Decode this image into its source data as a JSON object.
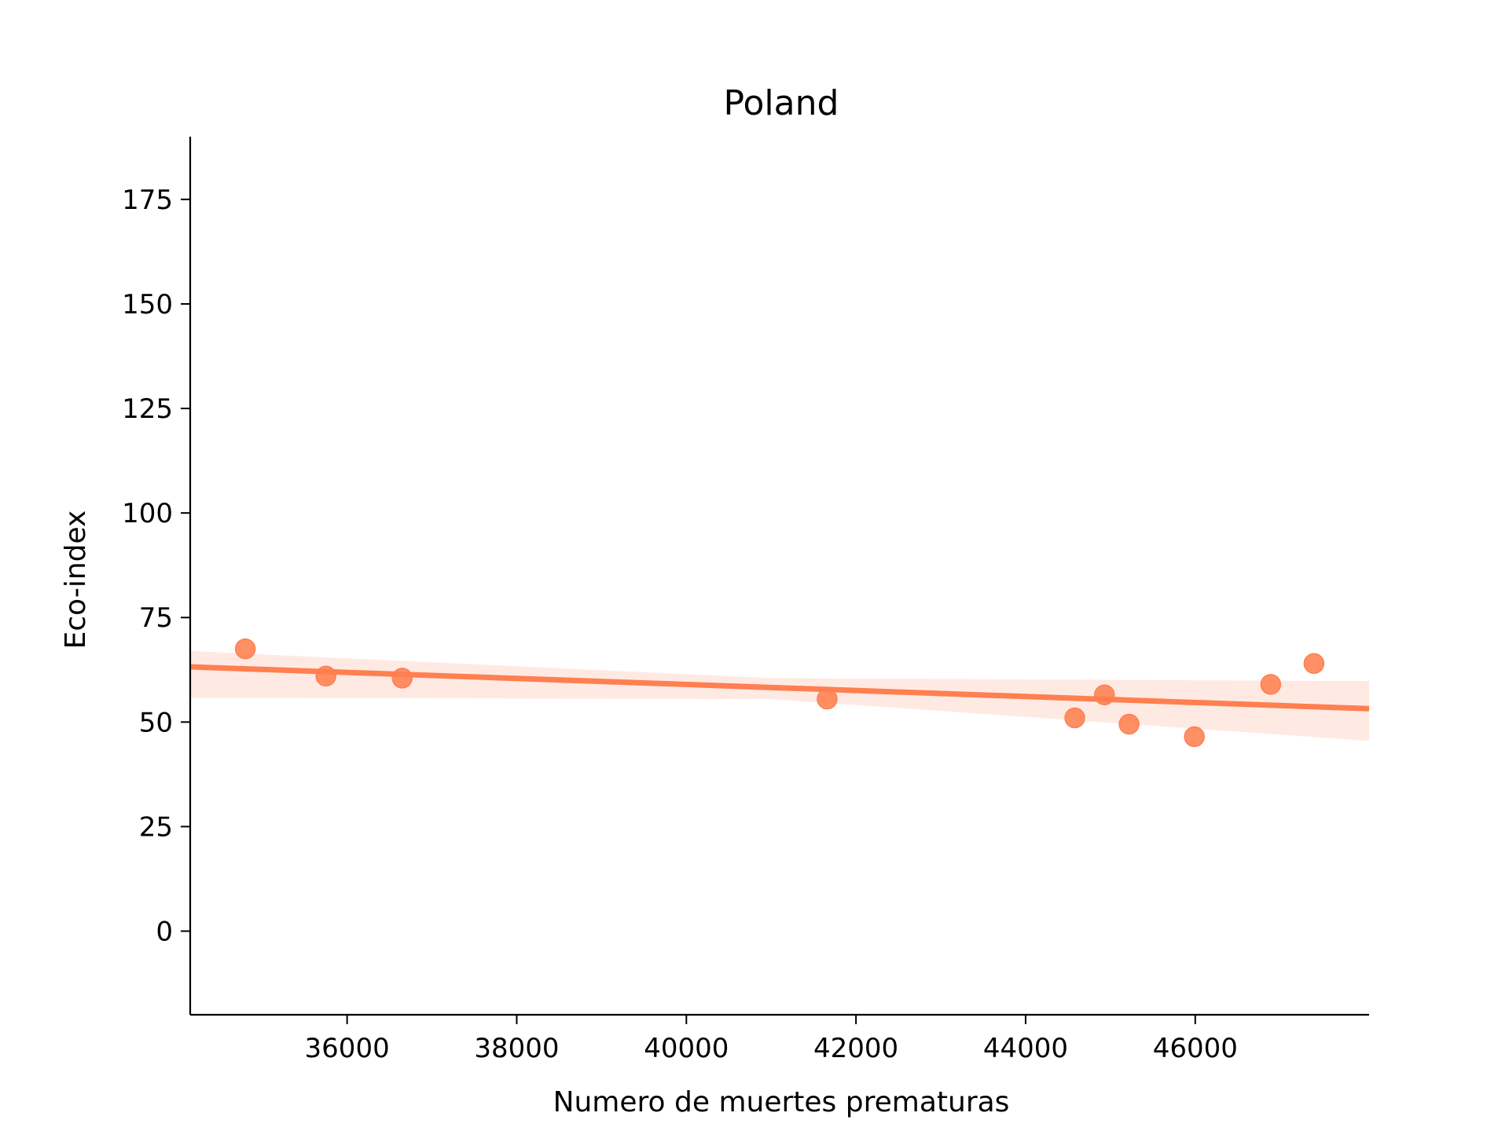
{
  "chart_data": {
    "type": "scatter",
    "title": "Poland",
    "xlabel": "Numero de muertes prematuras",
    "ylabel": "Eco-index",
    "xlim": [
      34150,
      48050
    ],
    "ylim": [
      -20,
      190
    ],
    "x_ticks": [
      36000,
      38000,
      40000,
      42000,
      44000,
      46000
    ],
    "y_ticks": [
      0,
      25,
      50,
      75,
      100,
      125,
      150,
      175
    ],
    "x_tick_labels": [
      "36000",
      "38000",
      "40000",
      "42000",
      "44000",
      "46000"
    ],
    "y_tick_labels": [
      "0",
      "25",
      "50",
      "75",
      "100",
      "125",
      "150",
      "175"
    ],
    "grid": false,
    "color": "#ff7f50",
    "series": [
      {
        "points": [
          {
            "x": 34800,
            "y": 67.5
          },
          {
            "x": 35750,
            "y": 61.0
          },
          {
            "x": 36650,
            "y": 60.5
          },
          {
            "x": 41660,
            "y": 55.5
          },
          {
            "x": 44580,
            "y": 51.0
          },
          {
            "x": 44930,
            "y": 56.5
          },
          {
            "x": 45220,
            "y": 49.5
          },
          {
            "x": 45990,
            "y": 46.5
          },
          {
            "x": 46890,
            "y": 59.0
          },
          {
            "x": 47400,
            "y": 64.0
          }
        ]
      }
    ],
    "regression": {
      "line": [
        [
          34150,
          63.2
        ],
        [
          48050,
          53.2
        ]
      ],
      "ci_upper": [
        [
          34150,
          67.0
        ],
        [
          41000,
          60.5
        ],
        [
          48050,
          59.8
        ]
      ],
      "ci_lower": [
        [
          34150,
          55.8
        ],
        [
          41000,
          55.5
        ],
        [
          48050,
          45.5
        ]
      ]
    }
  }
}
